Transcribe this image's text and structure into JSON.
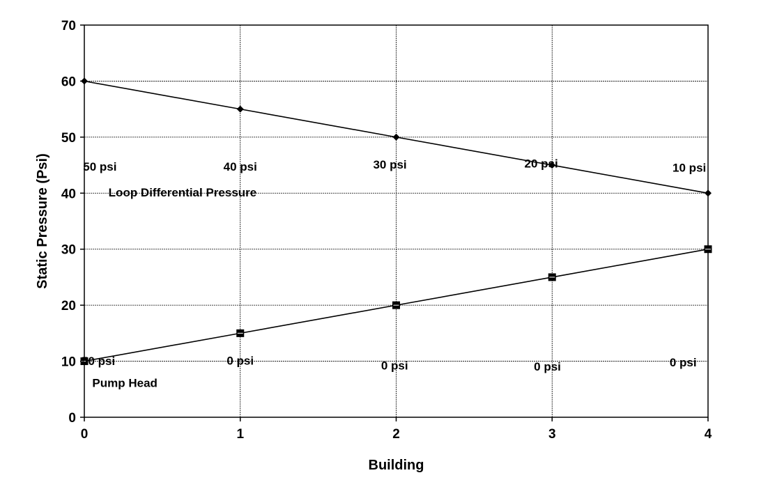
{
  "chart_data": {
    "type": "line",
    "title": "",
    "xlabel": "Building",
    "ylabel": "Static Pressure (Psi)",
    "xlim": [
      0,
      4
    ],
    "ylim": [
      0,
      70
    ],
    "x_ticks": [
      0,
      1,
      2,
      3,
      4
    ],
    "y_ticks": [
      0,
      10,
      20,
      30,
      40,
      50,
      60,
      70
    ],
    "grid": true,
    "x": [
      0,
      1,
      2,
      3,
      4
    ],
    "series": [
      {
        "values": [
          60,
          55,
          50,
          45,
          40
        ],
        "marker": "diamond",
        "color": "#000000"
      },
      {
        "values": [
          10,
          15,
          20,
          25,
          30
        ],
        "marker": "square",
        "color": "#000000"
      }
    ],
    "annotations": [
      {
        "text": "50 psi",
        "x": 0.1,
        "y": 44
      },
      {
        "text": "40 psi",
        "x": 1,
        "y": 44
      },
      {
        "text": "30 psi",
        "x": 1.96,
        "y": 44.4
      },
      {
        "text": "20 psi",
        "x": 2.93,
        "y": 44.6
      },
      {
        "text": "10 psi",
        "x": 3.88,
        "y": 43.8
      },
      {
        "text": "Loop Differential Pressure",
        "x": 0.63,
        "y": 39.4
      },
      {
        "text": "50 psi",
        "x": 0.09,
        "y": 9.3
      },
      {
        "text": "0 psi",
        "x": 1,
        "y": 9.4
      },
      {
        "text": "0 psi",
        "x": 1.99,
        "y": 8.5
      },
      {
        "text": "0 psi",
        "x": 2.97,
        "y": 8.3
      },
      {
        "text": "0 psi",
        "x": 3.84,
        "y": 9.1
      },
      {
        "text": "Pump Head",
        "x": 0.26,
        "y": 5.4
      }
    ]
  }
}
